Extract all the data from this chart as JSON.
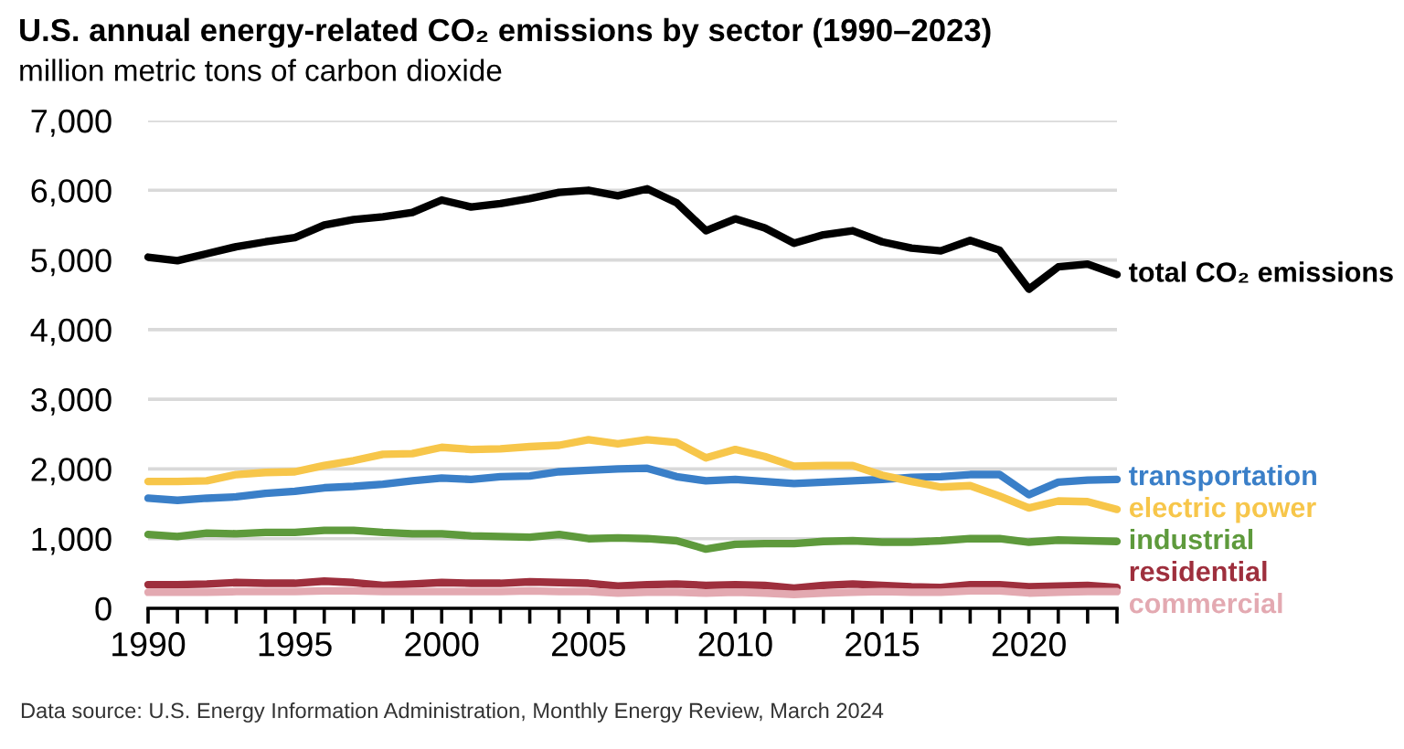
{
  "chart_data": {
    "type": "line",
    "title": "U.S. annual energy-related CO₂ emissions by sector (1990–2023)",
    "subtitle": "million metric tons of carbon dioxide",
    "annotations": [
      "Data source: U.S. Energy Information Administration, Monthly Energy Review, March 2024"
    ],
    "x": [
      1990,
      1991,
      1992,
      1993,
      1994,
      1995,
      1996,
      1997,
      1998,
      1999,
      2000,
      2001,
      2002,
      2003,
      2004,
      2005,
      2006,
      2007,
      2008,
      2009,
      2010,
      2011,
      2012,
      2013,
      2014,
      2015,
      2016,
      2017,
      2018,
      2019,
      2020,
      2021,
      2022,
      2023
    ],
    "series": [
      {
        "name": "total CO₂ emissions",
        "color": "#000000",
        "values": [
          5040,
          4990,
          5090,
          5190,
          5260,
          5320,
          5500,
          5580,
          5620,
          5680,
          5860,
          5760,
          5810,
          5880,
          5970,
          6000,
          5920,
          6020,
          5820,
          5420,
          5590,
          5460,
          5240,
          5360,
          5420,
          5260,
          5170,
          5130,
          5280,
          5140,
          4580,
          4900,
          4940,
          4790
        ]
      },
      {
        "name": "transportation",
        "color": "#3a7fc8",
        "values": [
          1580,
          1550,
          1580,
          1600,
          1650,
          1680,
          1730,
          1750,
          1780,
          1830,
          1870,
          1850,
          1890,
          1900,
          1960,
          1980,
          2000,
          2010,
          1890,
          1830,
          1850,
          1820,
          1790,
          1810,
          1830,
          1850,
          1880,
          1890,
          1920,
          1920,
          1630,
          1810,
          1840,
          1850
        ]
      },
      {
        "name": "electric power",
        "color": "#f7c64a",
        "values": [
          1820,
          1820,
          1830,
          1920,
          1950,
          1960,
          2050,
          2120,
          2210,
          2220,
          2310,
          2280,
          2290,
          2320,
          2340,
          2420,
          2360,
          2420,
          2380,
          2160,
          2280,
          2180,
          2040,
          2050,
          2050,
          1910,
          1820,
          1740,
          1760,
          1610,
          1440,
          1540,
          1530,
          1420
        ]
      },
      {
        "name": "industrial",
        "color": "#5e9a3c",
        "values": [
          1060,
          1030,
          1080,
          1070,
          1090,
          1090,
          1120,
          1120,
          1090,
          1070,
          1070,
          1040,
          1030,
          1020,
          1060,
          1000,
          1010,
          1000,
          970,
          850,
          920,
          930,
          930,
          960,
          970,
          950,
          950,
          970,
          1000,
          1000,
          950,
          980,
          970,
          960
        ]
      },
      {
        "name": "residential",
        "color": "#9e2f3d",
        "values": [
          340,
          340,
          350,
          370,
          360,
          360,
          390,
          370,
          330,
          350,
          370,
          360,
          360,
          380,
          370,
          360,
          320,
          340,
          350,
          330,
          340,
          330,
          290,
          330,
          350,
          330,
          310,
          300,
          340,
          340,
          310,
          320,
          330,
          300
        ]
      },
      {
        "name": "commercial",
        "color": "#e3a9b1",
        "values": [
          230,
          230,
          230,
          240,
          240,
          240,
          250,
          250,
          240,
          240,
          240,
          240,
          240,
          250,
          240,
          240,
          220,
          230,
          230,
          220,
          230,
          220,
          200,
          220,
          230,
          240,
          230,
          230,
          250,
          250,
          220,
          230,
          240,
          240
        ]
      }
    ],
    "xlim": [
      1990,
      2023
    ],
    "xticks": [
      1990,
      {
        "value": 1991,
        "label": null
      },
      {
        "value": 1992,
        "label": null
      },
      {
        "value": 1993,
        "label": null
      },
      {
        "value": 1994,
        "label": null
      },
      1995,
      {
        "value": 1996,
        "label": null
      },
      {
        "value": 1997,
        "label": null
      },
      {
        "value": 1998,
        "label": null
      },
      {
        "value": 1999,
        "label": null
      },
      2000,
      {
        "value": 2001,
        "label": null
      },
      {
        "value": 2002,
        "label": null
      },
      {
        "value": 2003,
        "label": null
      },
      {
        "value": 2004,
        "label": null
      },
      2005,
      {
        "value": 2006,
        "label": null
      },
      {
        "value": 2007,
        "label": null
      },
      {
        "value": 2008,
        "label": null
      },
      {
        "value": 2009,
        "label": null
      },
      2010,
      {
        "value": 2011,
        "label": null
      },
      {
        "value": 2012,
        "label": null
      },
      {
        "value": 2013,
        "label": null
      },
      {
        "value": 2014,
        "label": null
      },
      2015,
      {
        "value": 2016,
        "label": null
      },
      {
        "value": 2017,
        "label": null
      },
      {
        "value": 2018,
        "label": null
      },
      {
        "value": 2019,
        "label": null
      },
      2020,
      {
        "value": 2021,
        "label": null
      },
      {
        "value": 2022,
        "label": null
      },
      {
        "value": 2023,
        "label": null
      }
    ],
    "ylim": [
      0,
      7000
    ],
    "yticks": [
      0,
      {
        "value": 1000,
        "label": "1,000"
      },
      {
        "value": 2000,
        "label": "2,000"
      },
      {
        "value": 3000,
        "label": "3,000"
      },
      {
        "value": 4000,
        "label": "4,000"
      },
      {
        "value": 5000,
        "label": "5,000"
      },
      {
        "value": 6000,
        "label": "6,000"
      },
      {
        "value": 7000,
        "label": "7,000"
      }
    ],
    "grid": "y",
    "legend": false,
    "marker": "none",
    "line_style": "solid"
  }
}
